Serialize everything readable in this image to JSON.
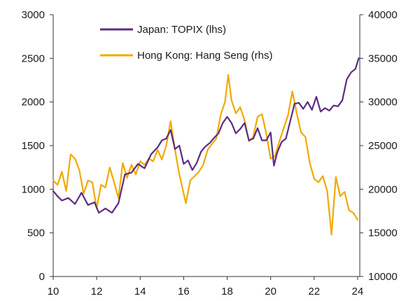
{
  "chart_data": {
    "type": "line",
    "title": "",
    "xlabel": "",
    "x_range": [
      10,
      24.1
    ],
    "x_ticks": [
      10,
      12,
      14,
      16,
      18,
      20,
      22,
      24
    ],
    "y_left": {
      "range": [
        0,
        3000
      ],
      "ticks": [
        0,
        500,
        1000,
        1500,
        2000,
        2500,
        3000
      ],
      "label": "Japan: TOPIX (lhs)"
    },
    "y_right": {
      "range": [
        10000,
        40000
      ],
      "ticks": [
        10000,
        15000,
        20000,
        25000,
        30000,
        35000,
        40000
      ],
      "label": "Hong Kong: Hang Seng (rhs)"
    },
    "legend_position": "top-left",
    "series": [
      {
        "name": "Japan: TOPIX (lhs)",
        "axis": "left",
        "color": "#5b2c83",
        "x": [
          10.0,
          10.2,
          10.4,
          10.7,
          11.0,
          11.3,
          11.6,
          11.9,
          12.1,
          12.4,
          12.7,
          13.0,
          13.3,
          13.6,
          13.9,
          14.2,
          14.5,
          14.8,
          15.0,
          15.2,
          15.4,
          15.6,
          15.8,
          16.0,
          16.2,
          16.4,
          16.6,
          16.8,
          17.0,
          17.2,
          17.4,
          17.6,
          17.8,
          18.0,
          18.2,
          18.4,
          18.6,
          18.8,
          19.0,
          19.2,
          19.4,
          19.6,
          19.8,
          20.0,
          20.15,
          20.3,
          20.5,
          20.7,
          20.9,
          21.1,
          21.3,
          21.5,
          21.7,
          21.9,
          22.1,
          22.3,
          22.5,
          22.7,
          22.9,
          23.1,
          23.3,
          23.5,
          23.7,
          23.9,
          24.05
        ],
        "values": [
          980,
          920,
          870,
          900,
          830,
          960,
          820,
          850,
          730,
          780,
          730,
          840,
          1170,
          1190,
          1290,
          1240,
          1400,
          1480,
          1560,
          1580,
          1680,
          1460,
          1500,
          1290,
          1330,
          1220,
          1300,
          1430,
          1490,
          1530,
          1590,
          1640,
          1760,
          1830,
          1760,
          1640,
          1690,
          1760,
          1560,
          1580,
          1700,
          1560,
          1560,
          1650,
          1270,
          1420,
          1540,
          1580,
          1780,
          1980,
          1990,
          1920,
          2000,
          1910,
          2060,
          1890,
          1930,
          1900,
          1960,
          1950,
          2020,
          2260,
          2340,
          2380,
          2500
        ]
      },
      {
        "name": "Hong Kong: Hang Seng (rhs)",
        "axis": "right",
        "color": "#f2a900",
        "x": [
          10.0,
          10.2,
          10.4,
          10.6,
          10.8,
          11.0,
          11.2,
          11.4,
          11.6,
          11.8,
          12.0,
          12.2,
          12.4,
          12.6,
          12.8,
          13.0,
          13.2,
          13.4,
          13.6,
          13.8,
          14.0,
          14.2,
          14.4,
          14.6,
          14.8,
          15.0,
          15.2,
          15.4,
          15.6,
          15.8,
          16.0,
          16.1,
          16.3,
          16.5,
          16.7,
          16.9,
          17.1,
          17.3,
          17.5,
          17.7,
          17.9,
          18.05,
          18.2,
          18.4,
          18.6,
          18.8,
          19.0,
          19.2,
          19.4,
          19.6,
          19.8,
          20.0,
          20.2,
          20.4,
          20.6,
          20.8,
          21.0,
          21.2,
          21.4,
          21.6,
          21.8,
          22.0,
          22.2,
          22.4,
          22.6,
          22.8,
          23.0,
          23.2,
          23.4,
          23.6,
          23.8,
          24.0
        ],
        "values": [
          21000,
          20500,
          22000,
          19800,
          24000,
          23500,
          22200,
          19500,
          21000,
          20800,
          17800,
          20500,
          20200,
          22500,
          20800,
          19000,
          23000,
          21300,
          22800,
          21700,
          23200,
          22800,
          23500,
          23200,
          24500,
          23400,
          25000,
          27800,
          24500,
          21700,
          19500,
          18400,
          21000,
          21500,
          22000,
          22800,
          24500,
          25200,
          25800,
          28500,
          30000,
          33100,
          30200,
          28700,
          29400,
          27900,
          25500,
          26000,
          28300,
          28600,
          26400,
          23500,
          23800,
          25500,
          27000,
          28500,
          31200,
          28700,
          26500,
          26000,
          23000,
          21200,
          20800,
          21500,
          19800,
          14800,
          21400,
          19200,
          19700,
          17600,
          17300,
          16500
        ]
      }
    ]
  }
}
